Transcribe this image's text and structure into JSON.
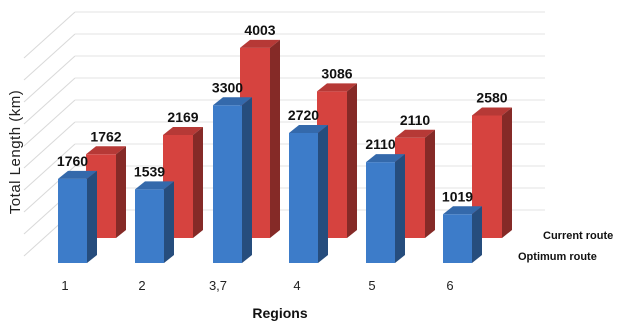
{
  "chart_data": {
    "type": "bar",
    "variant": "3d-clustered",
    "categories": [
      "1",
      "2",
      "3,7",
      "4",
      "5",
      "6"
    ],
    "series": [
      {
        "name": "Optimum route",
        "values": [
          1760,
          1539,
          3300,
          2720,
          2110,
          1019
        ],
        "color": "#3d7cc9"
      },
      {
        "name": "Current route",
        "values": [
          1762,
          2169,
          4003,
          3086,
          2110,
          2580
        ],
        "color": "#d6433f"
      }
    ],
    "xlabel": "Regions",
    "ylabel": "Total Length (km)",
    "ylim": [
      0,
      4500
    ],
    "grid": true,
    "legend": "right"
  }
}
